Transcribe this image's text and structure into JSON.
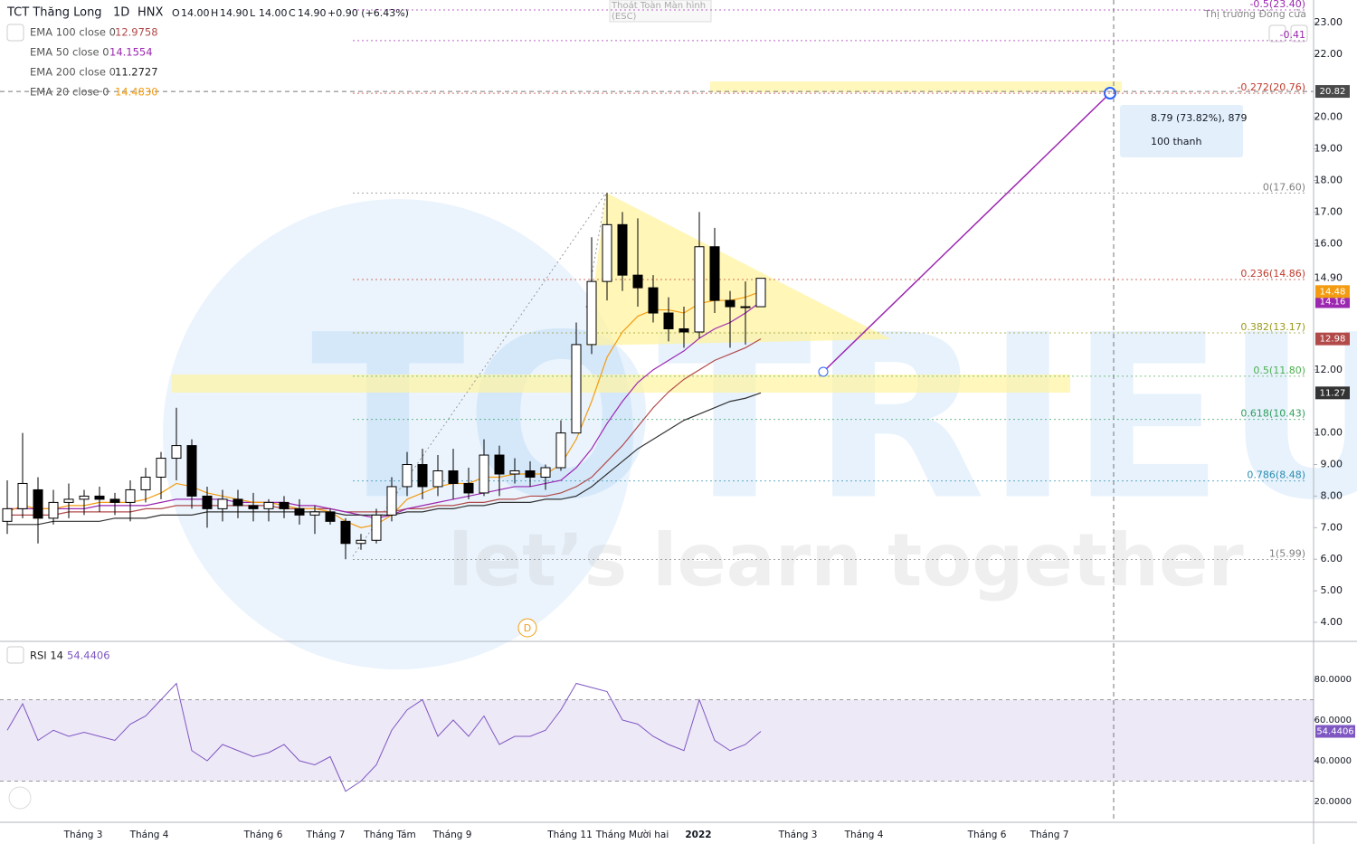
{
  "header": {
    "symbol": "TCT Thăng Long",
    "interval": "1D",
    "exchange": "HNX",
    "ohlc": [
      {
        "key": "O",
        "value": "14.00"
      },
      {
        "key": "H",
        "value": "14.90"
      },
      {
        "key": "L",
        "value": "14.00"
      },
      {
        "key": "C",
        "value": "14.90"
      }
    ],
    "change": "+0.90 (+6.43%)",
    "market_status": "Thị trường Đóng cửa",
    "fullscreen_exit": "Thoát Toàn Màn hình",
    "fullscreen_key": "(ESC)"
  },
  "watermark": {
    "brand": "TOTRIEU",
    "slogan": "let’s learn together"
  },
  "chart_data": {
    "type": "candlestick",
    "ylim": [
      4,
      23
    ],
    "yticks": [
      {
        "value": 23,
        "label": "23.00"
      },
      {
        "value": 22,
        "label": "22.00"
      },
      {
        "value": 20,
        "label": "20.00"
      },
      {
        "value": 19,
        "label": "19.00"
      },
      {
        "value": 18,
        "label": "18.00"
      },
      {
        "value": 17,
        "label": "17.00"
      },
      {
        "value": 16,
        "label": "16.00"
      },
      {
        "value": 12,
        "label": "12.00"
      },
      {
        "value": 10,
        "label": "10.00"
      },
      {
        "value": 9,
        "label": "9.00"
      },
      {
        "value": 8,
        "label": "8.00"
      },
      {
        "value": 7,
        "label": "7.00"
      },
      {
        "value": 6,
        "label": "6.00"
      },
      {
        "value": 5,
        "label": "5.00"
      },
      {
        "value": 4,
        "label": "4.00"
      }
    ],
    "time_axis": [
      "Tháng 3",
      "Tháng 4",
      "Tháng 6",
      "Tháng 7",
      "Tháng Tám",
      "Tháng 9",
      "Tháng 11",
      "Tháng Mười hai",
      "2022",
      "Tháng 3",
      "Tháng 4",
      "Tháng 6",
      "Tháng 7"
    ],
    "open": [
      7.2,
      7.6,
      8.2,
      7.3,
      7.8,
      7.9,
      8.0,
      7.9,
      7.8,
      8.2,
      8.6,
      9.2,
      9.6,
      8.0,
      7.6,
      7.9,
      7.7,
      7.6,
      7.8,
      7.6,
      7.4,
      7.5,
      7.2,
      6.5,
      6.6,
      7.4,
      8.3,
      9.0,
      8.3,
      8.8,
      8.4,
      8.1,
      9.3,
      8.7,
      8.8,
      8.6,
      8.9,
      10.0,
      12.8,
      14.8,
      16.6,
      15.0,
      14.6,
      13.8,
      13.3,
      13.2,
      15.9,
      14.2,
      14.0,
      14.0
    ],
    "high": [
      8.5,
      10.0,
      8.6,
      8.2,
      8.4,
      8.2,
      8.3,
      8.1,
      8.5,
      8.9,
      9.4,
      10.8,
      9.8,
      8.3,
      8.2,
      8.2,
      8.1,
      7.9,
      8.0,
      7.9,
      7.7,
      7.6,
      7.3,
      6.8,
      7.6,
      8.6,
      9.4,
      9.5,
      9.3,
      9.5,
      8.9,
      9.8,
      9.6,
      9.2,
      9.1,
      9.0,
      10.4,
      13.5,
      16.2,
      17.6,
      17.0,
      16.8,
      15.0,
      14.3,
      14.0,
      17.0,
      16.5,
      14.5,
      14.8,
      14.9
    ],
    "low": [
      6.8,
      7.3,
      6.5,
      7.1,
      7.3,
      7.4,
      7.5,
      7.4,
      7.2,
      7.8,
      7.9,
      8.5,
      7.6,
      7.0,
      7.2,
      7.3,
      7.2,
      7.2,
      7.3,
      7.1,
      6.8,
      7.1,
      6.0,
      6.3,
      6.5,
      7.2,
      8.0,
      7.9,
      8.0,
      7.9,
      7.9,
      8.0,
      8.0,
      8.4,
      8.3,
      8.2,
      8.8,
      10.0,
      12.5,
      14.2,
      14.5,
      14.0,
      13.5,
      12.9,
      12.7,
      13.0,
      13.8,
      12.7,
      12.8,
      14.0
    ],
    "close": [
      7.6,
      8.4,
      7.3,
      7.8,
      7.9,
      8.0,
      7.9,
      7.8,
      8.2,
      8.6,
      9.2,
      9.6,
      8.0,
      7.6,
      7.9,
      7.7,
      7.6,
      7.8,
      7.6,
      7.4,
      7.5,
      7.2,
      6.5,
      6.6,
      7.4,
      8.3,
      9.0,
      8.3,
      8.8,
      8.4,
      8.1,
      9.3,
      8.7,
      8.8,
      8.6,
      8.9,
      10.0,
      12.8,
      14.8,
      16.6,
      15.0,
      14.6,
      13.8,
      13.3,
      13.2,
      15.9,
      14.2,
      14.0,
      14.0,
      14.9
    ],
    "last_price": {
      "value": 14.9,
      "label": "14.90"
    },
    "series": [
      {
        "name": "EMA 100 close 0",
        "value_label": "12.9758",
        "color": "#b24a4a",
        "badge": {
          "value": 12.98,
          "label": "12.98"
        },
        "values": [
          7.4,
          7.4,
          7.4,
          7.4,
          7.5,
          7.5,
          7.5,
          7.5,
          7.5,
          7.6,
          7.6,
          7.7,
          7.7,
          7.7,
          7.7,
          7.7,
          7.7,
          7.7,
          7.6,
          7.6,
          7.6,
          7.6,
          7.5,
          7.5,
          7.5,
          7.5,
          7.6,
          7.6,
          7.7,
          7.7,
          7.8,
          7.8,
          7.9,
          7.9,
          8.0,
          8.0,
          8.1,
          8.3,
          8.6,
          9.1,
          9.6,
          10.2,
          10.8,
          11.3,
          11.7,
          12.0,
          12.3,
          12.5,
          12.7,
          12.98
        ]
      },
      {
        "name": "EMA 50 close 0",
        "value_label": "14.1554",
        "color": "#9c27b0",
        "badge": {
          "value": 14.16,
          "label": "14.16"
        },
        "values": [
          7.6,
          7.6,
          7.6,
          7.6,
          7.6,
          7.6,
          7.7,
          7.7,
          7.7,
          7.7,
          7.8,
          7.9,
          7.9,
          7.9,
          7.9,
          7.8,
          7.8,
          7.8,
          7.8,
          7.7,
          7.7,
          7.6,
          7.5,
          7.4,
          7.3,
          7.4,
          7.6,
          7.7,
          7.8,
          7.9,
          8.0,
          8.1,
          8.2,
          8.3,
          8.3,
          8.4,
          8.5,
          8.9,
          9.5,
          10.3,
          11.0,
          11.6,
          12.0,
          12.3,
          12.6,
          13.0,
          13.3,
          13.5,
          13.8,
          14.16
        ]
      },
      {
        "name": "EMA 200 close 0",
        "value_label": "11.2727",
        "color": "#333333",
        "badge": {
          "value": 11.27,
          "label": "11.27"
        },
        "values": [
          7.1,
          7.1,
          7.1,
          7.2,
          7.2,
          7.2,
          7.2,
          7.3,
          7.3,
          7.3,
          7.4,
          7.4,
          7.4,
          7.5,
          7.5,
          7.5,
          7.5,
          7.5,
          7.5,
          7.5,
          7.5,
          7.5,
          7.4,
          7.4,
          7.4,
          7.4,
          7.5,
          7.5,
          7.6,
          7.6,
          7.7,
          7.7,
          7.8,
          7.8,
          7.8,
          7.9,
          7.9,
          8.0,
          8.3,
          8.7,
          9.1,
          9.5,
          9.8,
          10.1,
          10.4,
          10.6,
          10.8,
          11.0,
          11.1,
          11.27
        ]
      },
      {
        "name": "EMA 20 close 0",
        "value_label": "14.4830",
        "color": "#f39c12",
        "badge": {
          "value": 14.48,
          "label": "14.48"
        },
        "values": [
          7.5,
          7.7,
          7.6,
          7.6,
          7.7,
          7.7,
          7.8,
          7.8,
          7.8,
          7.9,
          8.1,
          8.4,
          8.3,
          8.1,
          8.0,
          7.9,
          7.8,
          7.8,
          7.7,
          7.6,
          7.6,
          7.5,
          7.2,
          7.0,
          7.1,
          7.4,
          7.9,
          8.1,
          8.3,
          8.4,
          8.4,
          8.6,
          8.6,
          8.7,
          8.7,
          8.7,
          9.0,
          9.8,
          11.0,
          12.4,
          13.2,
          13.7,
          13.9,
          13.9,
          13.8,
          14.1,
          14.2,
          14.2,
          14.3,
          14.48
        ]
      }
    ],
    "fib_levels": [
      {
        "label": "-0.5(23.40)",
        "price": 23.4,
        "color": "#9c27b0"
      },
      {
        "label": "-0.41",
        "price": 22.43,
        "color": "#9c27b0"
      },
      {
        "label": "-0.272(20.76)",
        "price": 20.76,
        "color": "#c0392b"
      },
      {
        "label": "0(17.60)",
        "price": 17.6,
        "color": "#808080"
      },
      {
        "label": "0.236(14.86)",
        "price": 14.86,
        "color": "#c0392b"
      },
      {
        "label": "0.382(13.17)",
        "price": 13.17,
        "color": "#9a9a1a"
      },
      {
        "label": "0.5(11.80)",
        "price": 11.8,
        "color": "#4caf50"
      },
      {
        "label": "0.618(10.43)",
        "price": 10.43,
        "color": "#2e9e5b"
      },
      {
        "label": "0.786(8.48)",
        "price": 8.48,
        "color": "#2a8cb0"
      },
      {
        "label": "1(5.99)",
        "price": 5.99,
        "color": "#808080"
      }
    ],
    "crosshair": {
      "value": 20.82,
      "label": "20.82"
    },
    "measure": {
      "range": "8.79 (73.82%), 879",
      "bars": "100 thanh"
    },
    "marker": "D",
    "rsi": {
      "name": "RSI 14",
      "value_label": "54.4406",
      "color": "#7e57c2",
      "ylim": [
        14,
        98
      ],
      "band": [
        30,
        70
      ],
      "yticks": [
        {
          "value": 80,
          "label": "80.0000"
        },
        {
          "value": 60,
          "label": "60.0000"
        },
        {
          "value": 40,
          "label": "40.0000"
        },
        {
          "value": 20,
          "label": "20.0000"
        }
      ],
      "badge": {
        "value": 54.4406,
        "label": "54.4406"
      },
      "values": [
        55,
        68,
        50,
        55,
        52,
        54,
        52,
        50,
        58,
        62,
        70,
        78,
        45,
        40,
        48,
        45,
        42,
        44,
        48,
        40,
        38,
        42,
        25,
        30,
        38,
        55,
        65,
        70,
        52,
        60,
        52,
        62,
        48,
        52,
        52,
        55,
        65,
        78,
        76,
        74,
        60,
        58,
        52,
        48,
        45,
        70,
        50,
        45,
        48,
        54.4406
      ]
    }
  }
}
